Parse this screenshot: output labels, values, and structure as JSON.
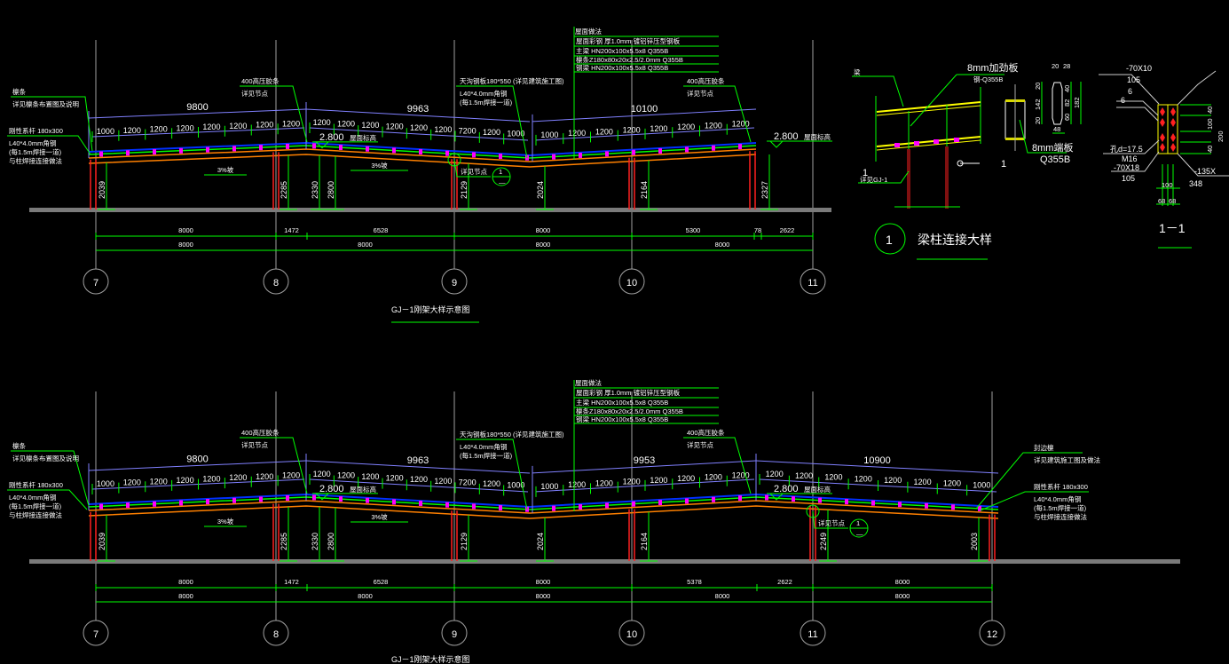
{
  "colors": {
    "background": "#000000",
    "dimension": "#00ff00",
    "axis": "#a0a0a0",
    "beam": "#ff8000",
    "column": "#ff2020",
    "purlin": "#ff00ff",
    "span_dim": "#8080ff",
    "roof_sheet": "#0030ff",
    "text": "#ffffff",
    "highlight": "#ffff00"
  },
  "legend": {
    "title": "屋面做法",
    "lines": [
      "屋面彩钢 厚1.0mm  镀铝锌压型钢板",
      "主梁 HN200x100x5.5x8  Q355B",
      "檩条Z180x80x20x2.5/2.0mm  Q355B",
      "钢梁 HN200x100x5.5x8  Q355B"
    ]
  },
  "frames": [
    {
      "title": "GJ－1刚架大样示意图",
      "axes": [
        "7",
        "8",
        "9",
        "10",
        "11"
      ],
      "span_labels": [
        "9800",
        "9963",
        "10100"
      ],
      "purlin_spacings": [
        [
          "1000",
          "1200",
          "1200",
          "1200",
          "1200",
          "1200",
          "1200",
          "1200"
        ],
        [
          "1200",
          "1200",
          "1200",
          "1200",
          "1200",
          "1200",
          "7200",
          "1200",
          "1000"
        ],
        [
          "1000",
          "1200",
          "1200",
          "1200",
          "1200",
          "1200",
          "1200",
          "1200"
        ]
      ],
      "column_heights": [
        "2039",
        "2285",
        "2330",
        "2800",
        "2129",
        "2024",
        "2164",
        "2327"
      ],
      "dim_row1": [
        "8000",
        "1472",
        "6528",
        "8000",
        "5300",
        "78",
        "2622"
      ],
      "dim_row2": [
        "8000",
        "8000",
        "8000",
        "8000"
      ],
      "ridge": [
        {
          "label": "屋面标高",
          "value": "2.800"
        },
        {
          "label": "屋面标高",
          "value": "2.800"
        }
      ],
      "slope_labels": [
        "3%坡",
        "3%坡"
      ],
      "callouts": [
        [
          "檩条",
          "详见檩条布置图及说明"
        ],
        [
          "刚性系杆 180x300",
          "L40*4.0mm角钢",
          "(每1.5m焊接一道)",
          "与柱焊接连接做法"
        ],
        [
          "400高压胶条",
          "详见节点"
        ],
        [
          "天沟钢板180*550 (详见建筑施工图)",
          "L40*4.0mm角钢",
          "(每1.5m焊接一道)"
        ],
        [
          "400高压胶条",
          "详见节点"
        ]
      ],
      "detail_ref": {
        "label": "详见节点",
        "number": "1",
        "sheet": "—"
      }
    },
    {
      "title": "GJ－1刚架大样示意图",
      "axes": [
        "7",
        "8",
        "9",
        "10",
        "11",
        "12"
      ],
      "span_labels": [
        "9800",
        "9963",
        "9953",
        "10900"
      ],
      "purlin_spacings": [
        [
          "1000",
          "1200",
          "1200",
          "1200",
          "1200",
          "1200",
          "1200",
          "1200"
        ],
        [
          "1200",
          "1200",
          "1200",
          "1200",
          "1200",
          "1200",
          "7200",
          "1200",
          "1000"
        ],
        [
          "1000",
          "1200",
          "1200",
          "1200",
          "1200",
          "1200",
          "1200",
          "1200"
        ],
        [
          "1200",
          "1200",
          "1200",
          "1200",
          "1200",
          "1200",
          "1200",
          "1000"
        ]
      ],
      "column_heights": [
        "2039",
        "2285",
        "2330",
        "2800",
        "2129",
        "2024",
        "2164",
        "2249",
        "2003"
      ],
      "dim_row1": [
        "8000",
        "1472",
        "6528",
        "8000",
        "5378",
        "2622",
        "8000"
      ],
      "dim_row2": [
        "8000",
        "8000",
        "8000",
        "8000",
        "8000"
      ],
      "ridge": [
        {
          "label": "屋面标高",
          "value": "2.800"
        },
        {
          "label": "屋面标高",
          "value": "2.800"
        }
      ],
      "slope_labels": [
        "3%坡",
        "3%坡"
      ],
      "callouts": [
        [
          "檩条",
          "详见檩条布置图及说明"
        ],
        [
          "刚性系杆 180x300",
          "L40*4.0mm角钢",
          "(每1.5m焊接一道)",
          "与柱焊接连接做法"
        ],
        [
          "400高压胶条",
          "详见节点"
        ],
        [
          "天沟钢板180*550 (详见建筑施工图)",
          "L40*4.0mm角钢",
          "(每1.5m焊接一道)"
        ],
        [
          "400高压胶条",
          "详见节点"
        ],
        [
          "封边檩",
          "详见建筑施工图及做法"
        ],
        [
          "刚性系杆 180x300",
          "L40*4.0mm角钢",
          "(每1.5m焊接一道)",
          "与柱焊接连接做法"
        ]
      ],
      "detail_ref": {
        "label": "详见节点",
        "number": "1",
        "sheet": "—"
      }
    }
  ],
  "detail": {
    "title_number": "1",
    "title": "梁柱连接大样",
    "labels": {
      "beam": "梁",
      "stiffener": "8mm加劲板",
      "stiffener_grade": "钢-Q355B",
      "ref": "1",
      "ref_sub": "详见GJ-1",
      "section_mark": "1",
      "end_plate": "8mm端板",
      "end_plate_grade": "Q355B"
    },
    "plate_dims": [
      "20",
      "28",
      "20",
      "142",
      "20",
      "40",
      "82",
      "60",
      "182",
      "48"
    ],
    "section_title": "1－1",
    "bolt_labels": [
      "-70X10",
      "105",
      "6",
      "6",
      "孔d=17.5",
      "M16",
      "-70X18",
      "105",
      "-135X",
      "348",
      "100",
      "68",
      "68"
    ],
    "bolt_dims": [
      "40",
      "100",
      "200",
      "40"
    ]
  }
}
